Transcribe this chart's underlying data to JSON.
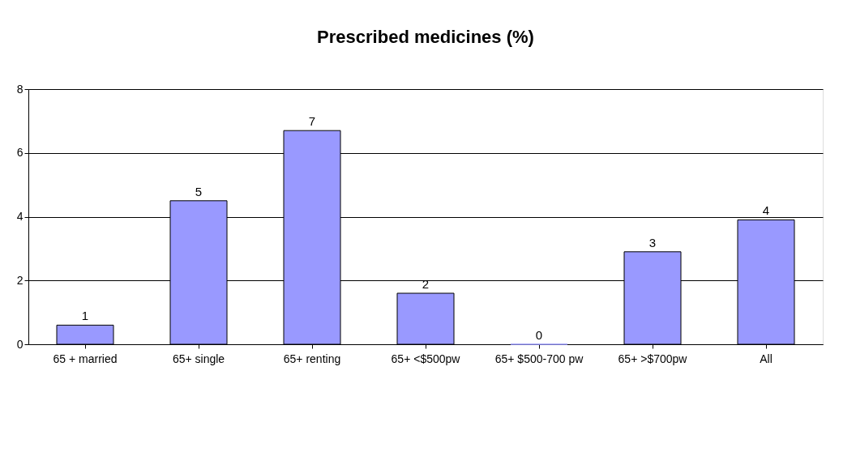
{
  "chart_data": {
    "type": "bar",
    "title": "Prescribed medicines (%)",
    "categories": [
      "65 + married",
      "65+ single",
      "65+ renting",
      "65+ <$500pw",
      "65+ $500-700 pw",
      "65+ >$700pw",
      "All"
    ],
    "values": [
      0.6,
      4.5,
      6.7,
      1.6,
      0,
      2.9,
      3.9
    ],
    "value_labels": [
      "1",
      "5",
      "7",
      "2",
      "0",
      "3",
      "4"
    ],
    "color": "#9999ff",
    "ylim": [
      0,
      8
    ],
    "yticks": [
      0,
      2,
      4,
      6,
      8
    ],
    "grid": "y"
  }
}
